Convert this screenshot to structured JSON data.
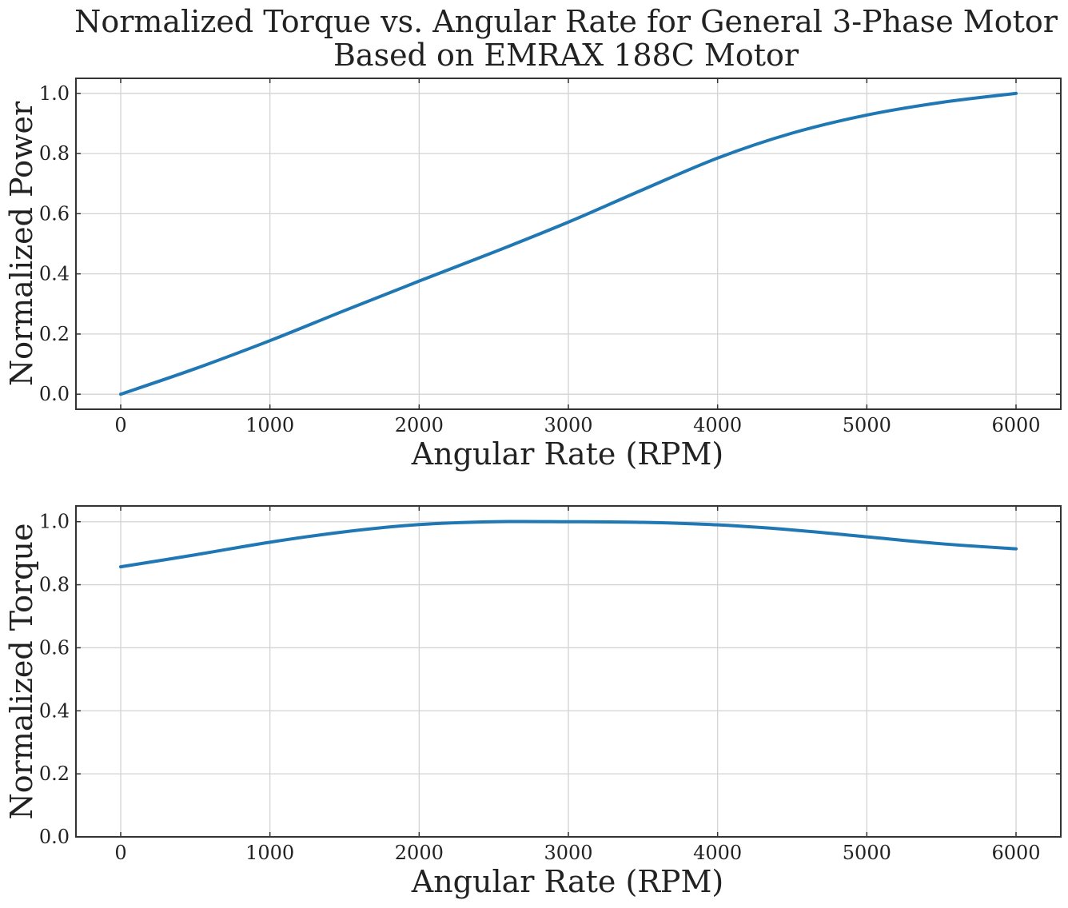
{
  "title_line1": "Normalized Torque vs. Angular Rate for General 3-Phase Motor",
  "title_line2": "Based on EMRAX 188C Motor",
  "colors": {
    "series": "#1f77b4",
    "grid": "#d3d3d3",
    "frame": "#333333",
    "text": "#222222"
  },
  "chart_data": [
    {
      "type": "line",
      "xlabel": "Angular Rate (RPM)",
      "ylabel": "Normalized Power",
      "xlim": [
        -300,
        6300
      ],
      "ylim": [
        -0.05,
        1.05
      ],
      "xticks": [
        0,
        1000,
        2000,
        3000,
        4000,
        5000,
        6000
      ],
      "xtick_labels": [
        "0",
        "1000",
        "2000",
        "3000",
        "4000",
        "5000",
        "6000"
      ],
      "yticks": [
        0.0,
        0.2,
        0.4,
        0.6,
        0.8,
        1.0
      ],
      "ytick_labels": [
        "0.0",
        "0.2",
        "0.4",
        "0.6",
        "0.8",
        "1.0"
      ],
      "grid": true,
      "series": [
        {
          "x": [
            0,
            500,
            1000,
            1500,
            2000,
            2500,
            3000,
            3500,
            4000,
            4500,
            5000,
            5500,
            6000
          ],
          "y": [
            0.0,
            0.085,
            0.178,
            0.278,
            0.376,
            0.472,
            0.572,
            0.68,
            0.785,
            0.868,
            0.928,
            0.97,
            1.0
          ]
        }
      ]
    },
    {
      "type": "line",
      "xlabel": "Angular Rate (RPM)",
      "ylabel": "Normalized Torque",
      "xlim": [
        -300,
        6300
      ],
      "ylim": [
        0.0,
        1.05
      ],
      "xticks": [
        0,
        1000,
        2000,
        3000,
        4000,
        5000,
        6000
      ],
      "xtick_labels": [
        "0",
        "1000",
        "2000",
        "3000",
        "4000",
        "5000",
        "6000"
      ],
      "yticks": [
        0.0,
        0.2,
        0.4,
        0.6,
        0.8,
        1.0
      ],
      "ytick_labels": [
        "0.0",
        "0.2",
        "0.4",
        "0.6",
        "0.8",
        "1.0"
      ],
      "grid": true,
      "series": [
        {
          "x": [
            0,
            500,
            1000,
            1500,
            2000,
            2500,
            3000,
            3500,
            4000,
            4500,
            5000,
            5500,
            6000
          ],
          "y": [
            0.857,
            0.895,
            0.935,
            0.968,
            0.991,
            1.0,
            1.0,
            0.998,
            0.99,
            0.974,
            0.952,
            0.93,
            0.914
          ]
        }
      ]
    }
  ]
}
